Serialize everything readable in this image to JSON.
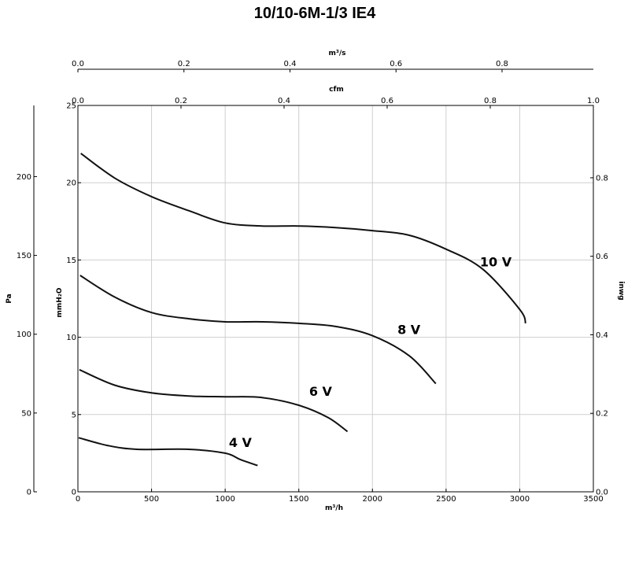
{
  "chart_data": {
    "type": "line",
    "title": "10/10-6M-1/3 IE4",
    "xlabel": "m³/h",
    "ylabel": "mmH₂O",
    "xlim": [
      0,
      3500
    ],
    "ylim": [
      0,
      25
    ],
    "x_ticks": [
      0,
      500,
      1000,
      1500,
      2000,
      2500,
      3000,
      3500
    ],
    "y_ticks": [
      0,
      5,
      10,
      15,
      20,
      25
    ],
    "grid": true,
    "secondary_axes": {
      "left_outer": {
        "label": "Pa",
        "ticks": [
          0,
          50,
          100,
          150,
          200
        ],
        "scale_per_mmH2O": 9.80665
      },
      "right": {
        "label": "inwg",
        "ticks": [
          "0.0",
          "0.2",
          "0.4",
          "0.6",
          "0.8"
        ],
        "scale_per_mmH2O": 0.0393701
      },
      "top_inner": {
        "label": "cfm",
        "ticks": [
          "0.0",
          "0.2",
          "0.4",
          "0.6",
          "0.8",
          "1.0"
        ]
      },
      "top_outer": {
        "label": "m³/s",
        "ticks": [
          "0.0",
          "0.2",
          "0.4",
          "0.6",
          "0.8"
        ]
      }
    },
    "series": [
      {
        "name": "10 V",
        "points": [
          [
            20,
            21.9
          ],
          [
            250,
            20.3
          ],
          [
            500,
            19.1
          ],
          [
            750,
            18.2
          ],
          [
            1000,
            17.4
          ],
          [
            1250,
            17.2
          ],
          [
            1500,
            17.2
          ],
          [
            1750,
            17.1
          ],
          [
            2000,
            16.9
          ],
          [
            2250,
            16.6
          ],
          [
            2500,
            15.7
          ],
          [
            2750,
            14.4
          ],
          [
            3000,
            11.8
          ],
          [
            3040,
            10.9
          ]
        ]
      },
      {
        "name": "8 V",
        "points": [
          [
            15,
            14.0
          ],
          [
            250,
            12.6
          ],
          [
            500,
            11.6
          ],
          [
            750,
            11.2
          ],
          [
            1000,
            11.0
          ],
          [
            1250,
            11.0
          ],
          [
            1500,
            10.9
          ],
          [
            1750,
            10.7
          ],
          [
            2000,
            10.1
          ],
          [
            2250,
            8.8
          ],
          [
            2430,
            7.0
          ]
        ]
      },
      {
        "name": "6 V",
        "points": [
          [
            10,
            7.9
          ],
          [
            250,
            6.9
          ],
          [
            500,
            6.4
          ],
          [
            750,
            6.2
          ],
          [
            1000,
            6.15
          ],
          [
            1250,
            6.1
          ],
          [
            1500,
            5.6
          ],
          [
            1700,
            4.8
          ],
          [
            1830,
            3.9
          ]
        ]
      },
      {
        "name": "4 V",
        "points": [
          [
            5,
            3.5
          ],
          [
            200,
            3.0
          ],
          [
            400,
            2.75
          ],
          [
            750,
            2.75
          ],
          [
            1000,
            2.5
          ],
          [
            1100,
            2.1
          ],
          [
            1220,
            1.7
          ]
        ]
      }
    ]
  }
}
